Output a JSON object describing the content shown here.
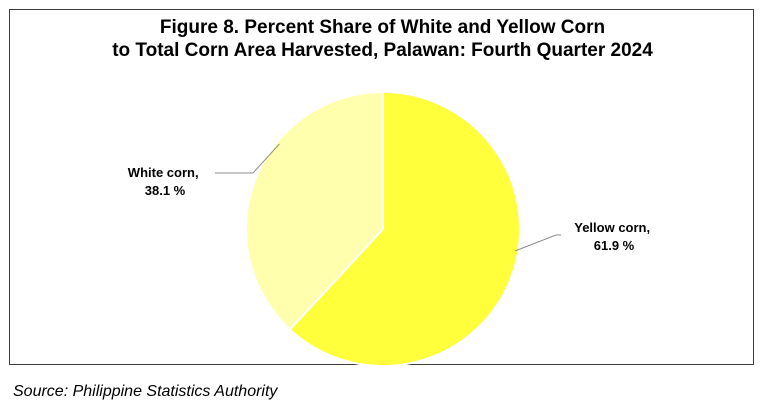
{
  "chart_data": {
    "type": "pie",
    "title_lines": [
      "Figure 8. Percent Share of White and Yellow Corn",
      "to Total Corn Area Harvested, Palawan: Fourth Quarter 2024"
    ],
    "slices": [
      {
        "name": "Yellow corn",
        "value": 61.9,
        "label_line1": "Yellow corn,",
        "label_line2": "61.9 %",
        "color": "#ffff3c"
      },
      {
        "name": "White corn",
        "value": 38.1,
        "label_line1": "White corn,",
        "label_line2": "38.1 %",
        "color": "#ffffad"
      }
    ],
    "start_angle_deg": 0,
    "direction": "clockwise",
    "legend": "none",
    "label_style": "category name and percent with leader lines"
  },
  "source": "Source: Philippine Statistics Authority"
}
